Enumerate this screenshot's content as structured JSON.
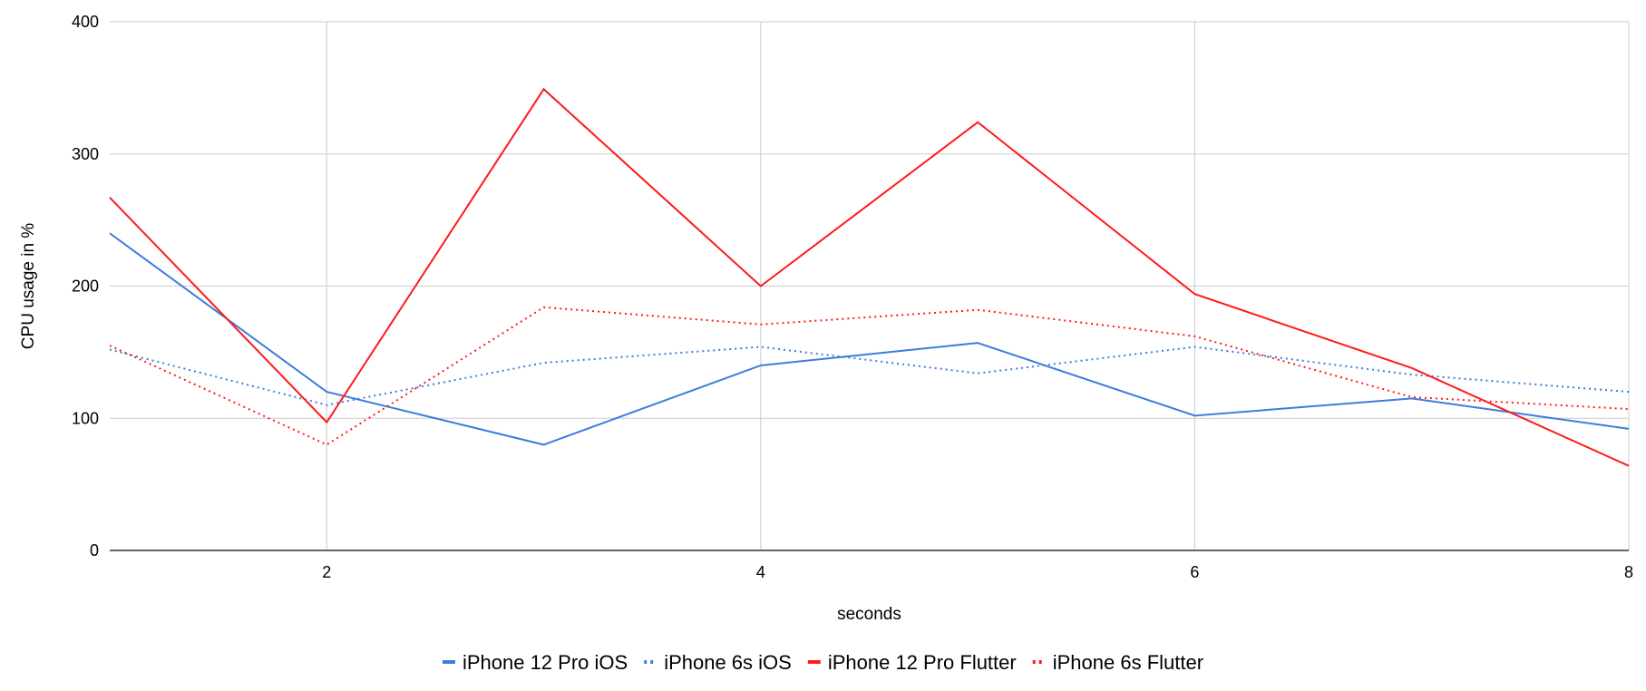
{
  "chart_data": {
    "type": "line",
    "title": "",
    "xlabel": "seconds",
    "ylabel": "CPU usage in %",
    "x": [
      1,
      2,
      3,
      4,
      5,
      6,
      7,
      8
    ],
    "xlim": [
      1,
      8
    ],
    "ylim": [
      0,
      400
    ],
    "x_ticks": [
      2,
      4,
      6,
      8
    ],
    "y_ticks": [
      0,
      100,
      200,
      300,
      400
    ],
    "grid": true,
    "legend_position": "bottom",
    "series": [
      {
        "name": "iPhone 12 Pro iOS",
        "color": "#3b7ddd",
        "line_style": "solid",
        "values": [
          240,
          120,
          80,
          140,
          157,
          102,
          115,
          92
        ]
      },
      {
        "name": "iPhone 6s iOS",
        "color": "#3b7ddd",
        "line_style": "dotted",
        "values": [
          152,
          110,
          142,
          154,
          134,
          154,
          133,
          120
        ]
      },
      {
        "name": "iPhone 12 Pro Flutter",
        "color": "#ff1a1a",
        "line_style": "solid",
        "values": [
          267,
          97,
          349,
          200,
          324,
          194,
          138,
          64
        ]
      },
      {
        "name": "iPhone 6s Flutter",
        "color": "#ff1a1a",
        "line_style": "dotted",
        "values": [
          155,
          80,
          184,
          171,
          182,
          162,
          116,
          107
        ]
      }
    ]
  }
}
